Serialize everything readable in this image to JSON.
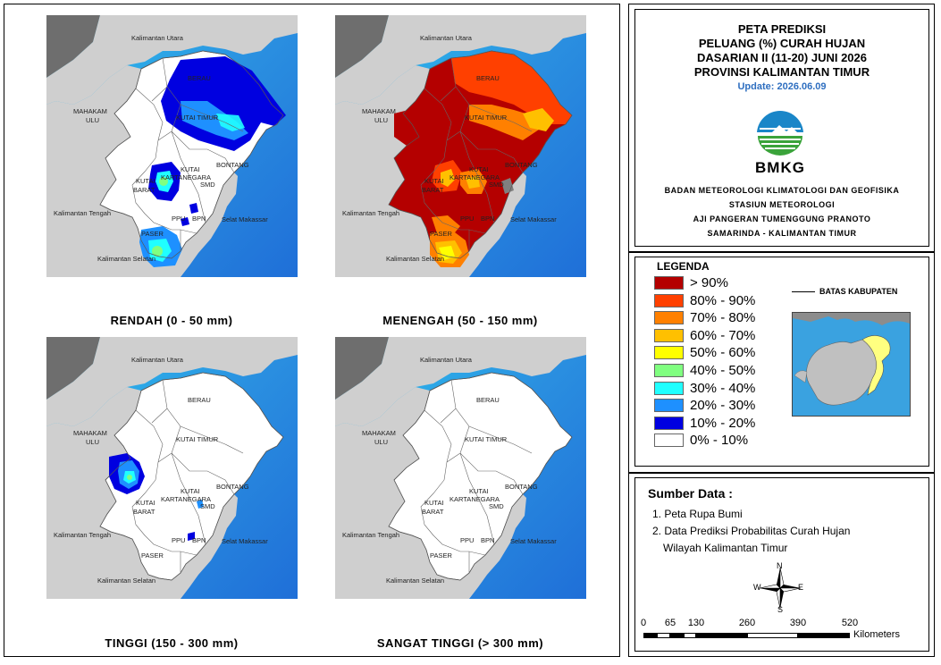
{
  "maps": [
    {
      "caption": "RENDAH (0 - 50 mm)",
      "overlay": "rendah"
    },
    {
      "caption": "MENENGAH (50 - 150 mm)",
      "overlay": "menengah"
    },
    {
      "caption": "TINGGI (150 - 300 mm)",
      "overlay": "tinggi"
    },
    {
      "caption": "SANGAT TINGGI (> 300 mm)",
      "overlay": "none"
    }
  ],
  "map_labels": {
    "kaltara": "Kalimantan Utara",
    "berau": "BERAU",
    "mahakam": "MAHAKAM",
    "ulu": "ULU",
    "kutim": "KUTAI TIMUR",
    "bontang": "BONTANG",
    "kutai": "KUTAI",
    "kartanegara": "KARTANEGARA",
    "kutai2": "KUTAI",
    "barat": "BARAT",
    "smd": "SMD",
    "kalteng": "Kalimantan Tengah",
    "selat": "Selat Makassar",
    "ppu": "PPU",
    "bpn": "BPN",
    "paser": "PASER",
    "kalsel": "Kalimantan Selatan"
  },
  "title": {
    "line1": "PETA PREDIKSI",
    "line2": "PELUANG (%) CURAH HUJAN",
    "line3": "DASARIAN II (11-20) JUNI 2026",
    "line4": "PROVINSI KALIMANTAN TIMUR",
    "update": "Update: 2026.06.09"
  },
  "agency": {
    "logo_text": "BMKG",
    "line1": "BADAN METEOROLOGI KLIMATOLOGI DAN GEOFISIKA",
    "line2": "STASIUN METEOROLOGI",
    "line3": "AJI PANGERAN TUMENGGUNG PRANOTO",
    "line4": "SAMARINDA - KALIMANTAN TIMUR"
  },
  "legend": {
    "title": "LEGENDA",
    "boundary": "BATAS KABUPATEN",
    "items": [
      {
        "label": "> 90%",
        "color": "#b40000"
      },
      {
        "label": "80% - 90%",
        "color": "#ff4000"
      },
      {
        "label": "70% - 80%",
        "color": "#ff8000"
      },
      {
        "label": "60% - 70%",
        "color": "#ffc000"
      },
      {
        "label": "50% - 60%",
        "color": "#ffff00"
      },
      {
        "label": "40% - 50%",
        "color": "#80ff80"
      },
      {
        "label": "30% - 40%",
        "color": "#20ffff"
      },
      {
        "label": "20% - 30%",
        "color": "#1e90ff"
      },
      {
        "label": "10% - 20%",
        "color": "#0000e0"
      },
      {
        "label": "0% - 10%",
        "color": "#ffffff"
      }
    ]
  },
  "source": {
    "title": "Sumber Data :",
    "item1": "1. Peta Rupa Bumi",
    "item2a": "2. Data Prediksi Probabilitas Curah Hujan",
    "item2b": "Wilayah Kalimantan Timur"
  },
  "compass": {
    "n": "N",
    "s": "S",
    "e": "E",
    "w": "W"
  },
  "scale": {
    "ticks": [
      "0",
      "65",
      "130",
      "260",
      "390",
      "520"
    ],
    "unit": "Kilometers"
  }
}
